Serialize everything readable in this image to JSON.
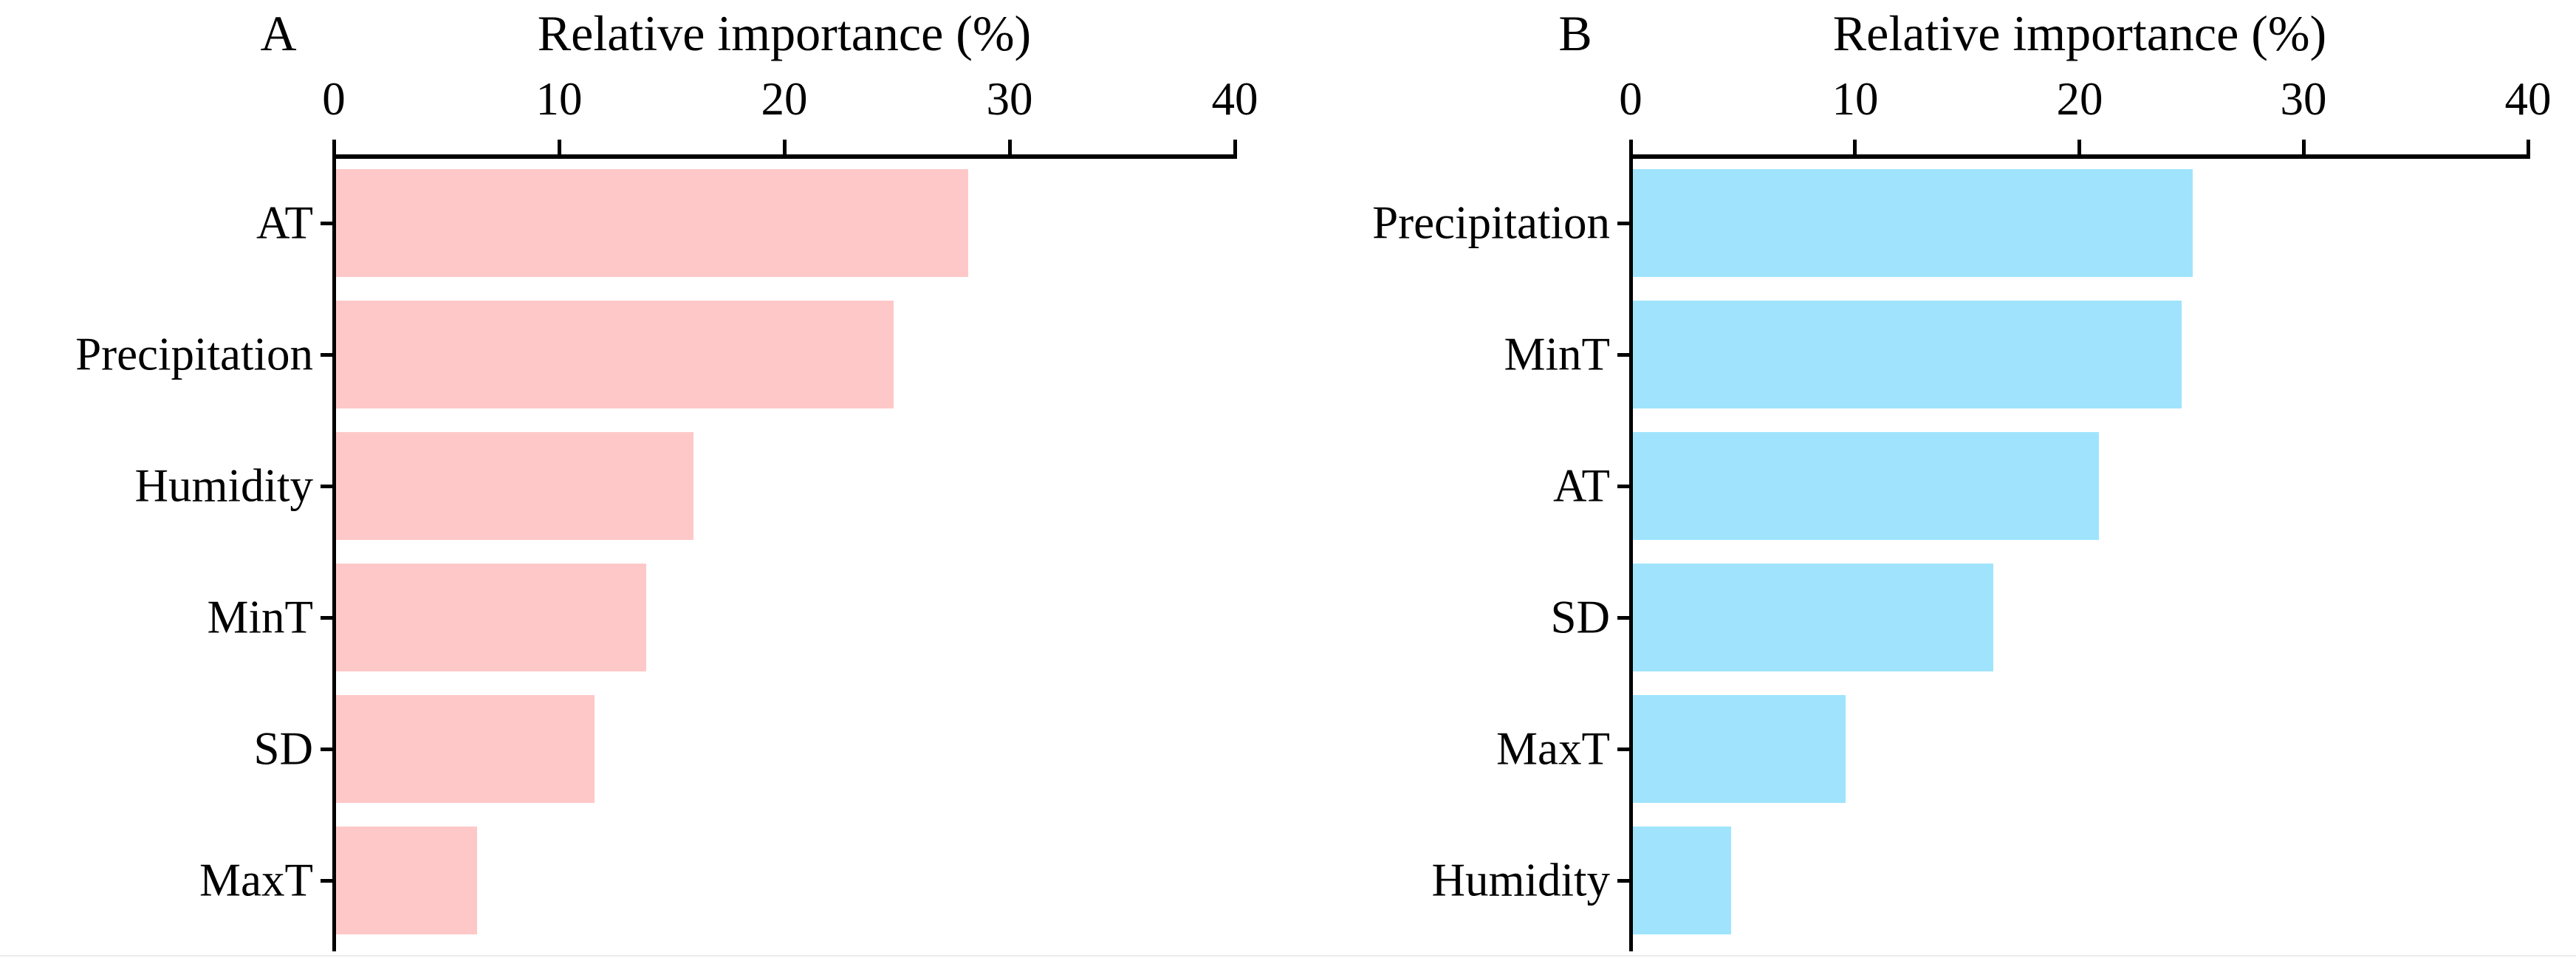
{
  "figure": {
    "background": "#FFFFFF",
    "text_color": "#000000",
    "axis_color": "#000000"
  },
  "chart_data": [
    {
      "type": "bar",
      "orientation": "horizontal",
      "panel_label": "A",
      "title": "Relative importance (%)",
      "categories": [
        "AT",
        "Precipitation",
        "Humidity",
        "MinT",
        "SD",
        "MaxT"
      ],
      "values": [
        28.1,
        24.8,
        15.9,
        13.8,
        11.5,
        6.3
      ],
      "xlabel": "Relative importance (%)",
      "ylabel": "",
      "xlim": [
        0,
        40
      ],
      "xticks": [
        0,
        10,
        20,
        30,
        40
      ],
      "bar_color": "#FFC8C8",
      "axis_color": "#000000",
      "grid": false,
      "legend": false
    },
    {
      "type": "bar",
      "orientation": "horizontal",
      "panel_label": "B",
      "title": "Relative importance (%)",
      "categories": [
        "Precipitation",
        "MinT",
        "AT",
        "SD",
        "MaxT",
        "Humidity"
      ],
      "values": [
        25.0,
        24.5,
        20.8,
        16.1,
        9.5,
        4.4
      ],
      "xlabel": "Relative importance (%)",
      "ylabel": "",
      "xlim": [
        0,
        40
      ],
      "xticks": [
        0,
        10,
        20,
        30,
        40
      ],
      "bar_color": "#9FE4FC",
      "axis_color": "#000000",
      "grid": false,
      "legend": false
    }
  ]
}
